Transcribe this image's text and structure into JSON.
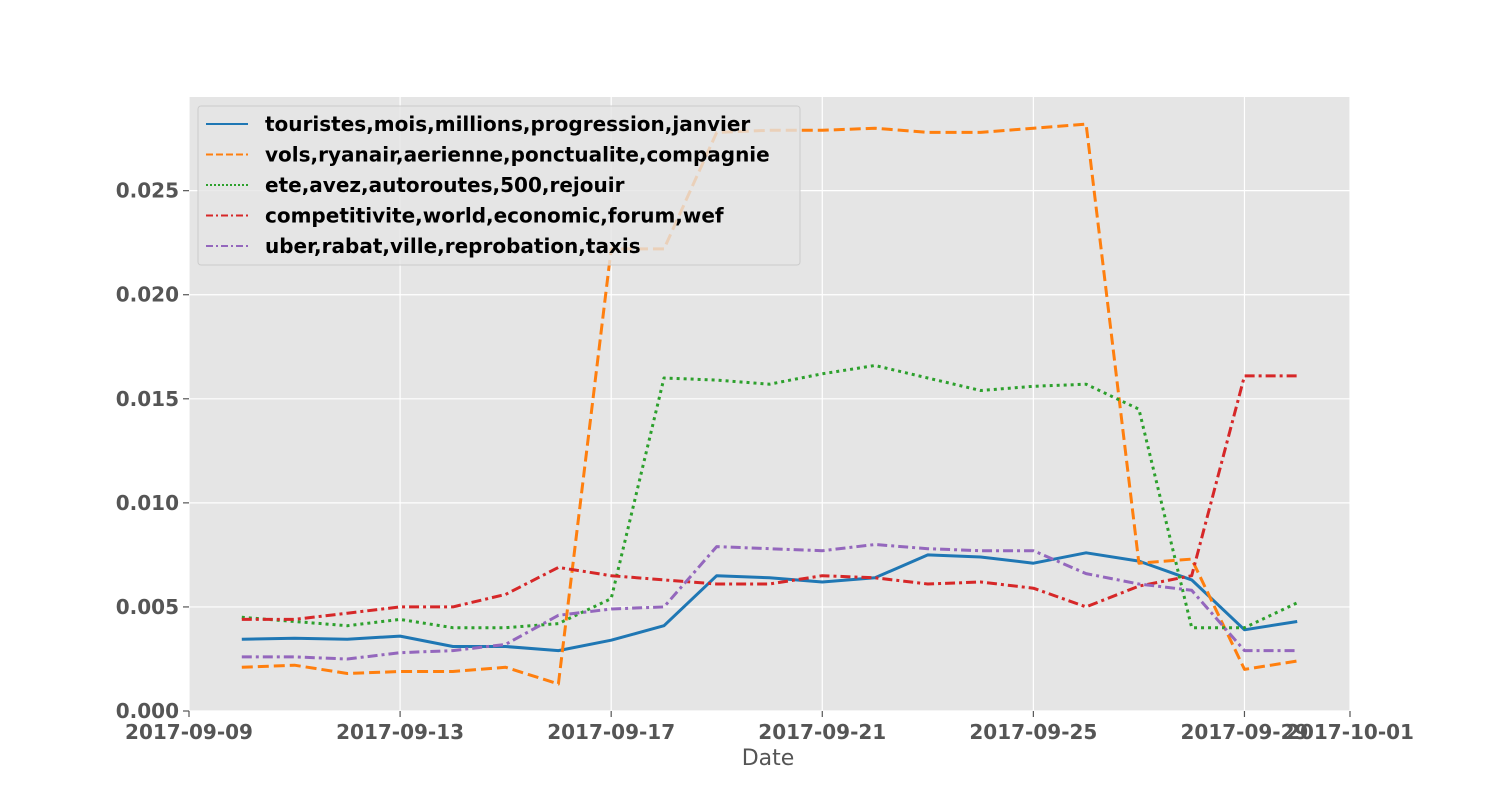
{
  "chart_data": {
    "type": "line",
    "title": "",
    "xlabel": "Date",
    "ylabel": "",
    "x_axis_type": "date",
    "xlim": [
      "2017-09-09",
      "2017-10-01"
    ],
    "ylim": [
      0.0,
      0.0295
    ],
    "grid": true,
    "background": "#e5e5e5",
    "legend_position": "top-left",
    "x_ticks": [
      "2017-09-09",
      "2017-09-13",
      "2017-09-17",
      "2017-09-21",
      "2017-09-25",
      "2017-09-29",
      "2017-10-01"
    ],
    "x_tick_labels": [
      "2017-09-09",
      "2017-09-13",
      "2017-09-17",
      "2017-09-21",
      "2017-09-25",
      "2017-09-29",
      "2017-10-01"
    ],
    "y_ticks": [
      0.0,
      0.005,
      0.01,
      0.015,
      0.02,
      0.025
    ],
    "y_tick_labels": [
      "0.000",
      "0.005",
      "0.010",
      "0.015",
      "0.020",
      "0.025"
    ],
    "x": [
      "2017-09-10",
      "2017-09-11",
      "2017-09-12",
      "2017-09-13",
      "2017-09-14",
      "2017-09-15",
      "2017-09-16",
      "2017-09-17",
      "2017-09-18",
      "2017-09-19",
      "2017-09-20",
      "2017-09-21",
      "2017-09-22",
      "2017-09-23",
      "2017-09-24",
      "2017-09-25",
      "2017-09-26",
      "2017-09-27",
      "2017-09-28",
      "2017-09-29",
      "2017-09-30"
    ],
    "series": [
      {
        "name": "touristes,mois,millions,progression,janvier",
        "color": "#1f77b4",
        "dash": "solid",
        "values": [
          0.00345,
          0.0035,
          0.00345,
          0.0036,
          0.0031,
          0.0031,
          0.0029,
          0.0034,
          0.0041,
          0.0065,
          0.0064,
          0.0062,
          0.0064,
          0.0075,
          0.0074,
          0.0071,
          0.0076,
          0.0072,
          0.0063,
          0.0039,
          0.0043
        ]
      },
      {
        "name": "vols,ryanair,aerienne,ponctualite,compagnie",
        "color": "#ff7f0e",
        "dash": "dashed",
        "values": [
          0.0021,
          0.0022,
          0.0018,
          0.0019,
          0.0019,
          0.0021,
          0.0013,
          0.0222,
          0.0222,
          0.0278,
          0.0279,
          0.0279,
          0.028,
          0.0278,
          0.0278,
          0.028,
          0.0282,
          0.0071,
          0.0073,
          0.002,
          0.0024
        ]
      },
      {
        "name": "ete,avez,autoroutes,500,rejouir",
        "color": "#2ca02c",
        "dash": "dotted",
        "values": [
          0.0045,
          0.0043,
          0.0041,
          0.0044,
          0.004,
          0.004,
          0.0042,
          0.0054,
          0.016,
          0.0159,
          0.0157,
          0.0162,
          0.0166,
          0.016,
          0.0154,
          0.0156,
          0.0157,
          0.0145,
          0.004,
          0.004,
          0.0052
        ]
      },
      {
        "name": "competitivite,world,economic,forum,wef",
        "color": "#d62728",
        "dash": "dashdot",
        "values": [
          0.0044,
          0.0044,
          0.0047,
          0.005,
          0.005,
          0.0056,
          0.0069,
          0.0065,
          0.0063,
          0.0061,
          0.0061,
          0.0065,
          0.0064,
          0.0061,
          0.0062,
          0.0059,
          0.005,
          0.006,
          0.0065,
          0.0161,
          0.0161
        ]
      },
      {
        "name": "uber,rabat,ville,reprobation,taxis",
        "color": "#9467bd",
        "dash": "dashdot",
        "values": [
          0.0026,
          0.0026,
          0.0025,
          0.0028,
          0.0029,
          0.0032,
          0.0046,
          0.0049,
          0.005,
          0.0079,
          0.0078,
          0.0077,
          0.008,
          0.0078,
          0.0077,
          0.0077,
          0.0066,
          0.0061,
          0.0058,
          0.0029,
          0.0029
        ]
      }
    ]
  }
}
